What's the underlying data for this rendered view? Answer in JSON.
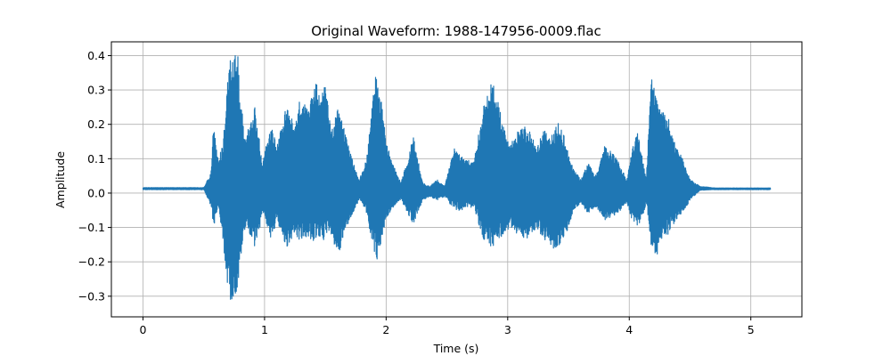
{
  "chart_data": {
    "type": "line",
    "title": "Original Waveform: 1988-147956-0009.flac",
    "xlabel": "Time (s)",
    "ylabel": "Amplitude",
    "xlim": [
      -0.26,
      5.42
    ],
    "ylim": [
      -0.36,
      0.44
    ],
    "x_ticks": [
      0,
      1,
      2,
      3,
      4,
      5
    ],
    "x_tick_labels": [
      "0",
      "1",
      "2",
      "3",
      "4",
      "5"
    ],
    "y_ticks": [
      -0.3,
      -0.2,
      -0.1,
      0.0,
      0.1,
      0.2,
      0.3,
      0.4
    ],
    "y_tick_labels": [
      "−0.3",
      "−0.2",
      "−0.1",
      "0.0",
      "0.1",
      "0.2",
      "0.3",
      "0.4"
    ],
    "grid": true,
    "line_color": "#1f77b4",
    "duration_s": 5.16,
    "series": [
      {
        "time_s": [
          0.0,
          0.5,
          0.56,
          0.58,
          0.6,
          0.62,
          0.66,
          0.7,
          0.72,
          0.75,
          0.78,
          0.8,
          0.84,
          0.88,
          0.92,
          0.96,
          0.98,
          1.02,
          1.06,
          1.1,
          1.14,
          1.18,
          1.24,
          1.3,
          1.36,
          1.42,
          1.46,
          1.5,
          1.55,
          1.6,
          1.66,
          1.72,
          1.78,
          1.84,
          1.88,
          1.92,
          1.95,
          2.0,
          2.06,
          2.12,
          2.18,
          2.22,
          2.26,
          2.3,
          2.36,
          2.42,
          2.48,
          2.56,
          2.64,
          2.72,
          2.8,
          2.86,
          2.9,
          2.96,
          3.02,
          3.08,
          3.14,
          3.18,
          3.24,
          3.3,
          3.36,
          3.42,
          3.48,
          3.54,
          3.6,
          3.66,
          3.72,
          3.8,
          3.9,
          3.98,
          4.02,
          4.06,
          4.1,
          4.14,
          4.18,
          4.22,
          4.26,
          4.32,
          4.38,
          4.44,
          4.5,
          4.58,
          4.7,
          4.9,
          5.16
        ],
        "env_max": [
          0.016,
          0.016,
          0.06,
          0.21,
          0.14,
          0.1,
          0.15,
          0.35,
          0.4,
          0.4,
          0.4,
          0.3,
          0.16,
          0.2,
          0.25,
          0.15,
          0.08,
          0.15,
          0.2,
          0.13,
          0.2,
          0.26,
          0.2,
          0.29,
          0.24,
          0.33,
          0.27,
          0.32,
          0.18,
          0.26,
          0.18,
          0.1,
          0.04,
          0.1,
          0.24,
          0.36,
          0.3,
          0.15,
          0.08,
          0.03,
          0.1,
          0.17,
          0.1,
          0.03,
          0.02,
          0.04,
          0.02,
          0.13,
          0.1,
          0.09,
          0.25,
          0.33,
          0.3,
          0.2,
          0.14,
          0.19,
          0.2,
          0.18,
          0.13,
          0.2,
          0.17,
          0.21,
          0.15,
          0.07,
          0.04,
          0.09,
          0.05,
          0.14,
          0.1,
          0.04,
          0.12,
          0.19,
          0.12,
          0.04,
          0.34,
          0.3,
          0.24,
          0.22,
          0.14,
          0.1,
          0.04,
          0.02,
          0.015,
          0.015,
          0.015
        ],
        "env_min": [
          0.01,
          0.01,
          -0.04,
          -0.1,
          -0.06,
          -0.05,
          -0.15,
          -0.3,
          -0.32,
          -0.3,
          -0.28,
          -0.2,
          -0.1,
          -0.12,
          -0.16,
          -0.1,
          -0.05,
          -0.1,
          -0.14,
          -0.08,
          -0.12,
          -0.16,
          -0.12,
          -0.14,
          -0.13,
          -0.15,
          -0.13,
          -0.14,
          -0.13,
          -0.2,
          -0.12,
          -0.06,
          -0.02,
          -0.06,
          -0.14,
          -0.2,
          -0.16,
          -0.08,
          -0.04,
          -0.02,
          -0.06,
          -0.1,
          -0.06,
          -0.02,
          -0.01,
          -0.02,
          -0.01,
          -0.05,
          -0.05,
          -0.04,
          -0.14,
          -0.16,
          -0.15,
          -0.12,
          -0.1,
          -0.12,
          -0.14,
          -0.12,
          -0.1,
          -0.14,
          -0.16,
          -0.16,
          -0.12,
          -0.05,
          -0.03,
          -0.06,
          -0.04,
          -0.08,
          -0.06,
          -0.03,
          -0.08,
          -0.1,
          -0.08,
          -0.03,
          -0.16,
          -0.2,
          -0.14,
          -0.12,
          -0.08,
          -0.06,
          -0.02,
          0.008,
          0.01,
          0.01,
          0.01
        ]
      }
    ]
  }
}
